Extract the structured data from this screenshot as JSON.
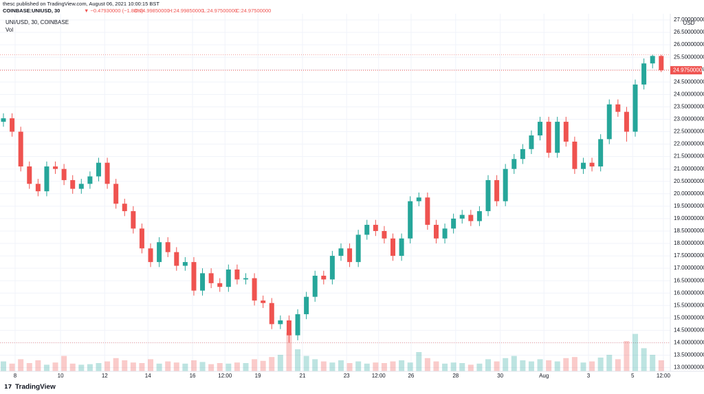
{
  "header": {
    "published": "thesc published on TradingView.com, August 06, 2021 10:00:15 BST",
    "symbol": "COINBASE:UNIUSD, 30",
    "change": "▼ −0.47930000 (−1.88%)",
    "open": "O:24.99850000",
    "high": "H:24.99850000",
    "low": "L:24.97500000",
    "close": "C:24.97500000"
  },
  "footer": {
    "brand": "TradingView"
  },
  "chart_data": {
    "type": "candlestick",
    "legend": "UNI/USD, 30, COINBASE",
    "volume_label": "Vol",
    "currency": "USD",
    "price_label": "24.97500000",
    "up_color": "#26a69a",
    "down_color": "#ef5350",
    "grid": true,
    "xlim": [
      -0.397,
      77.05
    ],
    "ylim": [
      12.85,
      27.25
    ],
    "vlim": [
      0,
      100
    ],
    "xticks": [
      {
        "value": 1.35,
        "label": "8"
      },
      {
        "value": 6.6,
        "label": "10"
      },
      {
        "value": 11.7,
        "label": "12"
      },
      {
        "value": 16.7,
        "label": "14"
      },
      {
        "value": 21.85,
        "label": "16"
      },
      {
        "value": 25.6,
        "label": "12:00"
      },
      {
        "value": 29.4,
        "label": "19"
      },
      {
        "value": 34.55,
        "label": "21"
      },
      {
        "value": 39.65,
        "label": "23"
      },
      {
        "value": 43.35,
        "label": "12:00"
      },
      {
        "value": 47.1,
        "label": "26"
      },
      {
        "value": 52.25,
        "label": "28"
      },
      {
        "value": 57.4,
        "label": "30"
      },
      {
        "value": 62.45,
        "label": "Aug"
      },
      {
        "value": 67.6,
        "label": "3"
      },
      {
        "value": 72.7,
        "label": "5"
      },
      {
        "value": 76.25,
        "label": "12:00"
      }
    ],
    "yticks": [
      {
        "value": 13,
        "label": "13.00000000"
      },
      {
        "value": 13.5,
        "label": "13.50000000"
      },
      {
        "value": 14,
        "label": "14.00000000"
      },
      {
        "value": 14.5,
        "label": "14.50000000"
      },
      {
        "value": 15,
        "label": "15.00000000"
      },
      {
        "value": 15.5,
        "label": "15.50000000"
      },
      {
        "value": 16,
        "label": "16.00000000"
      },
      {
        "value": 16.5,
        "label": "16.50000000"
      },
      {
        "value": 17,
        "label": "17.00000000"
      },
      {
        "value": 17.5,
        "label": "17.50000000"
      },
      {
        "value": 18,
        "label": "18.00000000"
      },
      {
        "value": 18.5,
        "label": "18.50000000"
      },
      {
        "value": 19,
        "label": "19.00000000"
      },
      {
        "value": 19.5,
        "label": "19.50000000"
      },
      {
        "value": 20,
        "label": "20.00000000"
      },
      {
        "value": 20.5,
        "label": "20.50000000"
      },
      {
        "value": 21,
        "label": "21.00000000"
      },
      {
        "value": 21.5,
        "label": "21.50000000"
      },
      {
        "value": 22,
        "label": "22.00000000"
      },
      {
        "value": 22.5,
        "label": "22.50000000"
      },
      {
        "value": 23,
        "label": "23.00000000"
      },
      {
        "value": 23.5,
        "label": "23.50000000"
      },
      {
        "value": 24,
        "label": "24.00000000"
      },
      {
        "value": 24.5,
        "label": "24.50000000"
      },
      {
        "value": 25,
        "label": "25.00000000"
      },
      {
        "value": 25.5,
        "label": "25.50000000"
      },
      {
        "value": 26,
        "label": "26.00000000"
      },
      {
        "value": 26.5,
        "label": "26.50000000"
      },
      {
        "value": 27,
        "label": "27.00000000"
      }
    ],
    "open": [
      22.9,
      23.04,
      22.5,
      21.1,
      20.4,
      20.1,
      21.1,
      21.0,
      20.55,
      20.2,
      20.4,
      20.7,
      21.25,
      20.4,
      19.6,
      19.3,
      18.6,
      17.8,
      17.25,
      18.05,
      17.65,
      17.1,
      17.25,
      16.1,
      16.8,
      16.4,
      16.25,
      16.95,
      16.55,
      16.6,
      15.7,
      15.6,
      14.75,
      14.9,
      14.3,
      15.15,
      15.85,
      16.7,
      16.55,
      17.5,
      17.8,
      17.25,
      18.35,
      18.75,
      18.5,
      18.2,
      17.5,
      18.2,
      19.7,
      19.85,
      18.75,
      18.2,
      18.6,
      19.0,
      19.15,
      18.9,
      19.3,
      20.55,
      19.7,
      21.0,
      21.4,
      21.8,
      22.35,
      22.9,
      21.65,
      22.9,
      22.1,
      21.0,
      21.25,
      21.1,
      22.2,
      23.6,
      23.3,
      22.5,
      24.4,
      25.25,
      25.55
    ],
    "high": [
      23.24,
      23.24,
      22.7,
      21.3,
      20.6,
      21.3,
      21.3,
      21.2,
      20.75,
      20.6,
      20.9,
      21.45,
      21.45,
      20.6,
      19.8,
      19.5,
      18.8,
      18.0,
      18.25,
      18.25,
      17.85,
      17.45,
      17.45,
      17.0,
      17.0,
      16.6,
      17.15,
      17.15,
      16.8,
      16.8,
      15.9,
      15.8,
      15.1,
      15.1,
      15.35,
      16.05,
      16.9,
      16.9,
      17.7,
      18.0,
      18.0,
      18.55,
      18.95,
      18.95,
      18.7,
      18.4,
      18.4,
      19.9,
      20.05,
      20.05,
      18.95,
      18.8,
      19.2,
      19.35,
      19.35,
      19.5,
      20.75,
      20.75,
      21.2,
      21.6,
      22.0,
      22.55,
      23.1,
      23.1,
      23.1,
      23.1,
      22.3,
      21.45,
      21.45,
      22.4,
      23.8,
      23.8,
      23.5,
      24.6,
      25.45,
      25.6,
      25.6
    ],
    "low": [
      22.7,
      22.3,
      20.9,
      20.2,
      19.9,
      19.9,
      20.8,
      20.35,
      20.0,
      20.0,
      20.2,
      20.5,
      20.2,
      19.4,
      19.1,
      18.4,
      17.6,
      17.05,
      17.05,
      17.45,
      16.9,
      16.9,
      15.9,
      15.9,
      16.2,
      16.05,
      16.05,
      16.35,
      16.35,
      15.5,
      15.4,
      14.55,
      14.55,
      14.0,
      14.1,
      14.95,
      15.65,
      16.35,
      16.35,
      17.3,
      17.05,
      17.05,
      18.15,
      18.3,
      18.0,
      17.3,
      17.3,
      18.0,
      19.5,
      18.55,
      18.0,
      18.0,
      18.4,
      18.8,
      18.7,
      18.7,
      19.1,
      19.5,
      19.5,
      20.8,
      21.2,
      21.6,
      22.15,
      21.45,
      21.45,
      21.9,
      20.8,
      20.8,
      20.9,
      20.9,
      22.0,
      23.1,
      22.1,
      22.3,
      24.2,
      25.05,
      24.9
    ],
    "close": [
      23.04,
      22.5,
      21.1,
      20.4,
      20.1,
      21.1,
      21.0,
      20.55,
      20.2,
      20.4,
      20.7,
      21.25,
      20.4,
      19.6,
      19.3,
      18.6,
      17.8,
      17.25,
      18.05,
      17.65,
      17.1,
      17.25,
      16.1,
      16.8,
      16.4,
      16.25,
      16.95,
      16.55,
      16.6,
      15.7,
      15.6,
      14.75,
      14.9,
      14.3,
      15.15,
      15.85,
      16.7,
      16.55,
      17.5,
      17.8,
      17.25,
      18.35,
      18.75,
      18.5,
      18.2,
      17.5,
      18.2,
      19.7,
      19.85,
      18.75,
      18.2,
      18.6,
      19.0,
      19.15,
      18.9,
      19.3,
      20.55,
      19.7,
      21.0,
      21.4,
      21.8,
      22.35,
      22.9,
      21.65,
      22.9,
      22.1,
      21.0,
      21.25,
      21.1,
      22.2,
      23.6,
      23.3,
      22.5,
      24.4,
      25.25,
      25.55,
      24.975
    ],
    "volume": [
      18,
      14,
      22,
      15,
      20,
      12,
      16,
      28,
      14,
      12,
      13,
      15,
      18,
      24,
      20,
      16,
      15,
      22,
      14,
      18,
      16,
      14,
      20,
      17,
      13,
      15,
      14,
      16,
      15,
      22,
      19,
      26,
      30,
      70,
      40,
      28,
      22,
      18,
      16,
      20,
      15,
      18,
      14,
      16,
      15,
      18,
      20,
      16,
      35,
      24,
      18,
      14,
      16,
      15,
      12,
      14,
      22,
      18,
      24,
      28,
      20,
      18,
      22,
      20,
      18,
      24,
      26,
      16,
      18,
      25,
      30,
      22,
      55,
      68,
      42,
      30,
      20
    ]
  }
}
